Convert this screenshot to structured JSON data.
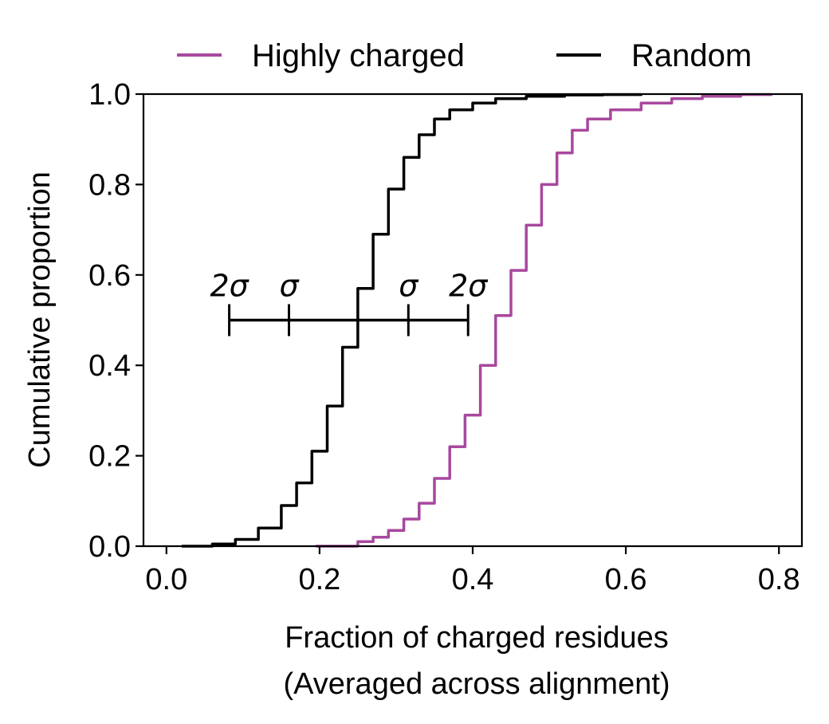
{
  "chart_data": {
    "type": "line",
    "subtype": "ecdf",
    "xlabel": "Fraction of charged residues",
    "xlabel_line2": "(Averaged across alignment)",
    "ylabel": "Cumulative proportion",
    "xlim": [
      -0.03,
      0.83
    ],
    "ylim": [
      0,
      1
    ],
    "xticks": [
      0.0,
      0.2,
      0.4,
      0.6,
      0.8
    ],
    "xtick_labels": [
      "0.0",
      "0.2",
      "0.4",
      "0.6",
      "0.8"
    ],
    "yticks": [
      0.0,
      0.2,
      0.4,
      0.6,
      0.8,
      1.0
    ],
    "ytick_labels": [
      "0.0",
      "0.2",
      "0.4",
      "0.6",
      "0.8",
      "1.0"
    ],
    "grid": false,
    "legend": {
      "placement": "top, above plot, horizontal"
    },
    "series": [
      {
        "name": "Highly charged",
        "color": "#a8489e",
        "x": [
          0.195,
          0.25,
          0.27,
          0.29,
          0.31,
          0.33,
          0.35,
          0.37,
          0.39,
          0.41,
          0.43,
          0.45,
          0.47,
          0.49,
          0.51,
          0.53,
          0.55,
          0.58,
          0.62,
          0.66,
          0.7,
          0.75,
          0.79
        ],
        "y": [
          0.0,
          0.01,
          0.02,
          0.035,
          0.06,
          0.095,
          0.15,
          0.22,
          0.29,
          0.4,
          0.51,
          0.61,
          0.71,
          0.8,
          0.87,
          0.92,
          0.945,
          0.965,
          0.98,
          0.99,
          0.995,
          0.999,
          1.0
        ]
      },
      {
        "name": "Random",
        "color": "#000000",
        "x": [
          0.02,
          0.06,
          0.09,
          0.12,
          0.15,
          0.17,
          0.19,
          0.21,
          0.23,
          0.25,
          0.27,
          0.29,
          0.31,
          0.33,
          0.35,
          0.37,
          0.4,
          0.43,
          0.47,
          0.52,
          0.57,
          0.62
        ],
        "y": [
          0.0,
          0.005,
          0.015,
          0.04,
          0.09,
          0.14,
          0.21,
          0.31,
          0.44,
          0.57,
          0.69,
          0.79,
          0.86,
          0.91,
          0.945,
          0.965,
          0.98,
          0.99,
          0.995,
          0.998,
          0.999,
          1.0
        ]
      }
    ],
    "annotation": {
      "type": "sigma-errorbar",
      "y": 0.5,
      "center": 0.238,
      "ticks": [
        {
          "x": 0.082,
          "label": "2σ"
        },
        {
          "x": 0.16,
          "label": "σ"
        },
        {
          "x": 0.316,
          "label": "σ"
        },
        {
          "x": 0.394,
          "label": "2σ"
        }
      ]
    }
  }
}
